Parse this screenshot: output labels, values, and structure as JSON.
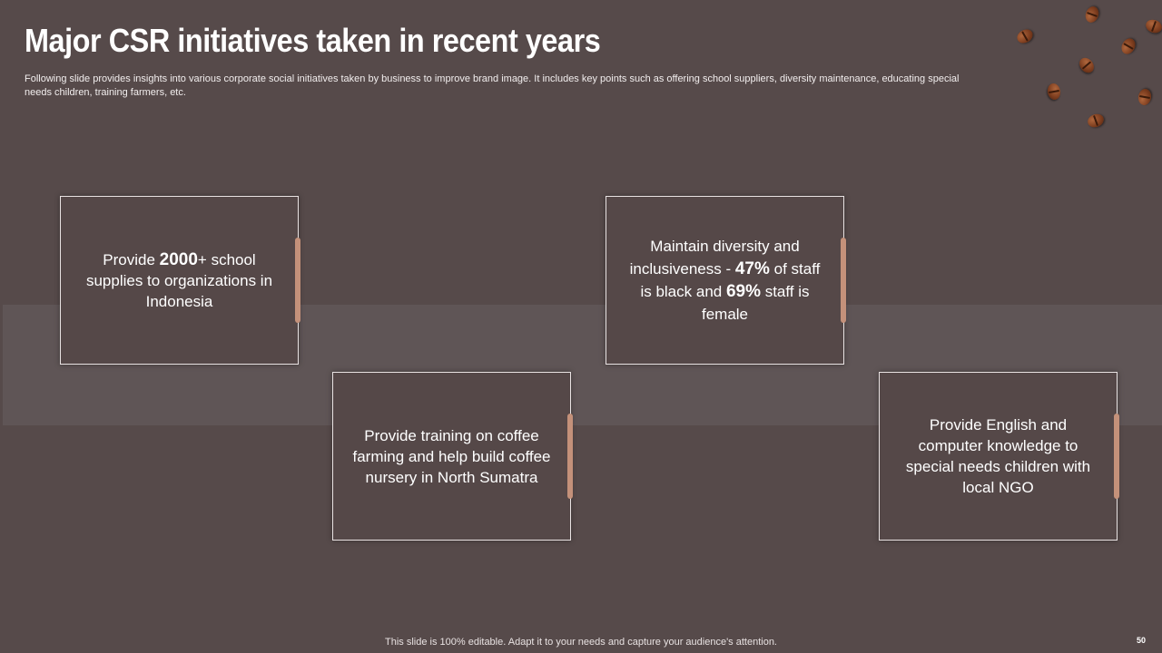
{
  "header": {
    "title": "Major CSR initiatives taken in recent years",
    "subtitle": "Following slide provides insights into various corporate social initiatives taken by business to improve brand image. It includes key points such as offering school suppliers, diversity maintenance, educating special needs children, training farmers, etc."
  },
  "cards": [
    {
      "pre": "Provide ",
      "bold": "2000",
      "post": "+ school supplies to organizations in Indonesia"
    },
    {
      "text": "Provide training on coffee farming and help build coffee nursery in North Sumatra"
    },
    {
      "pre": "Maintain diversity and inclusiveness - ",
      "bold1": "47%",
      "mid": " of staff is black and ",
      "bold2": "69%",
      "post": " staff is female"
    },
    {
      "text": "Provide English and computer knowledge to special needs children with local NGO"
    }
  ],
  "footer": {
    "note": "This slide is 100% editable. Adapt it to your needs and capture your audience's attention.",
    "page_number": "50"
  },
  "colors": {
    "background": "#564a4a",
    "band": "#5f5556",
    "accent_handle": "#c4917a"
  },
  "icons": [
    "coffee-bean-icon"
  ]
}
